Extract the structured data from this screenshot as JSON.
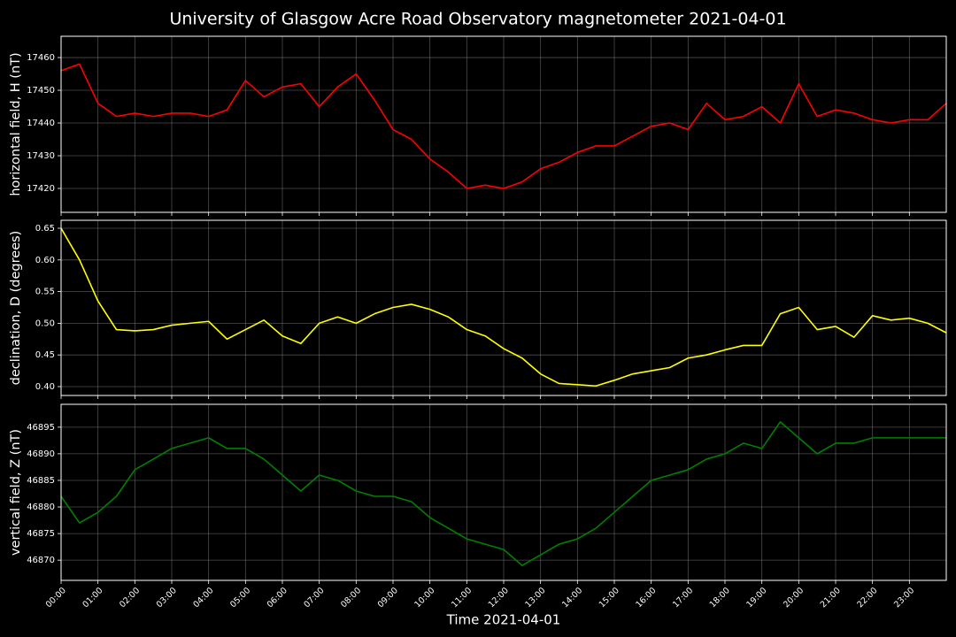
{
  "title": "University of Glasgow Acre Road Observatory magnetometer 2021-04-01",
  "xlabel": "Time 2021-04-01",
  "x": [
    0,
    0.5,
    1,
    1.5,
    2,
    2.5,
    3,
    3.5,
    4,
    4.5,
    5,
    5.5,
    6,
    6.5,
    7,
    7.5,
    8,
    8.5,
    9,
    9.5,
    10,
    10.5,
    11,
    11.5,
    12,
    12.5,
    13,
    13.5,
    14,
    14.5,
    15,
    15.5,
    16,
    16.5,
    17,
    17.5,
    18,
    18.5,
    19,
    19.5,
    20,
    20.5,
    21,
    21.5,
    22,
    22.5,
    23,
    23.5,
    24
  ],
  "xlim": [
    0,
    24
  ],
  "xticks": [
    {
      "value": 0,
      "label": "00:00"
    },
    {
      "value": 1,
      "label": "01:00"
    },
    {
      "value": 2,
      "label": "02:00"
    },
    {
      "value": 3,
      "label": "03:00"
    },
    {
      "value": 4,
      "label": "04:00"
    },
    {
      "value": 5,
      "label": "05:00"
    },
    {
      "value": 6,
      "label": "06:00"
    },
    {
      "value": 7,
      "label": "07:00"
    },
    {
      "value": 8,
      "label": "08:00"
    },
    {
      "value": 9,
      "label": "09:00"
    },
    {
      "value": 10,
      "label": "10:00"
    },
    {
      "value": 11,
      "label": "11:00"
    },
    {
      "value": 12,
      "label": "12:00"
    },
    {
      "value": 13,
      "label": "13:00"
    },
    {
      "value": 14,
      "label": "14:00"
    },
    {
      "value": 15,
      "label": "15:00"
    },
    {
      "value": 16,
      "label": "16:00"
    },
    {
      "value": 17,
      "label": "17:00"
    },
    {
      "value": 18,
      "label": "18:00"
    },
    {
      "value": 19,
      "label": "19:00"
    },
    {
      "value": 20,
      "label": "20:00"
    },
    {
      "value": 21,
      "label": "21:00"
    },
    {
      "value": 22,
      "label": "22:00"
    },
    {
      "value": 23,
      "label": "23:00"
    }
  ],
  "grid": true,
  "chart_data": [
    {
      "type": "line",
      "ylabel": "horizontal field, H (nT)",
      "ylim": [
        17412.7,
        17466.5
      ],
      "yticks": [
        17420,
        17430,
        17440,
        17450,
        17460
      ],
      "series": [
        {
          "color": "#ff0000",
          "values": [
            17456,
            17458,
            17446,
            17442,
            17443,
            17442,
            17443,
            17443,
            17442,
            17444,
            17453,
            17448,
            17451,
            17452,
            17445,
            17451,
            17455,
            17447,
            17438,
            17435,
            17429,
            17425,
            17420,
            17421,
            17420,
            17422,
            17426,
            17428,
            17431,
            17433,
            17433,
            17436,
            17439,
            17440,
            17438,
            17446,
            17441,
            17442,
            17445,
            17440,
            17452,
            17442,
            17444,
            17443,
            17441,
            17440,
            17441,
            17441,
            17446
          ]
        }
      ]
    },
    {
      "type": "line",
      "ylabel": "declination, D (degrees)",
      "ylim": [
        0.386,
        0.6626
      ],
      "yticks": [
        {
          "value": 0.4,
          "label": "0.40"
        },
        0.45,
        {
          "value": 0.5,
          "label": "0.50"
        },
        0.55,
        {
          "value": 0.6,
          "label": "0.60"
        },
        0.65
      ],
      "series": [
        {
          "color": "#ffff00",
          "values": [
            0.65,
            0.6,
            0.535,
            0.49,
            0.488,
            0.49,
            0.497,
            0.5,
            0.503,
            0.475,
            0.49,
            0.505,
            0.48,
            0.468,
            0.5,
            0.51,
            0.5,
            0.515,
            0.525,
            0.53,
            0.522,
            0.51,
            0.49,
            0.48,
            0.46,
            0.445,
            0.42,
            0.405,
            0.403,
            0.401,
            0.41,
            0.42,
            0.425,
            0.43,
            0.445,
            0.45,
            0.458,
            0.465,
            0.465,
            0.515,
            0.525,
            0.49,
            0.495,
            0.478,
            0.512,
            0.505,
            0.508,
            0.5,
            0.485
          ]
        }
      ]
    },
    {
      "type": "line",
      "ylabel": "vertical field, Z (nT)",
      "ylim": [
        46866.2,
        46899.3
      ],
      "yticks": [
        46870,
        46875,
        46880,
        46885,
        46890,
        46895
      ],
      "series": [
        {
          "color": "#008000",
          "values": [
            46882,
            46877,
            46879,
            46882,
            46887,
            46889,
            46891,
            46892,
            46893,
            46891,
            46891,
            46889,
            46886,
            46883,
            46886,
            46885,
            46883,
            46882,
            46882,
            46881,
            46878,
            46876,
            46874,
            46873,
            46872,
            46869,
            46871,
            46873,
            46874,
            46876,
            46879,
            46882,
            46885,
            46886,
            46887,
            46889,
            46890,
            46892,
            46891,
            46896,
            46893,
            46890,
            46892,
            46892,
            46893,
            46893,
            46893,
            46893,
            46893
          ]
        }
      ]
    }
  ]
}
